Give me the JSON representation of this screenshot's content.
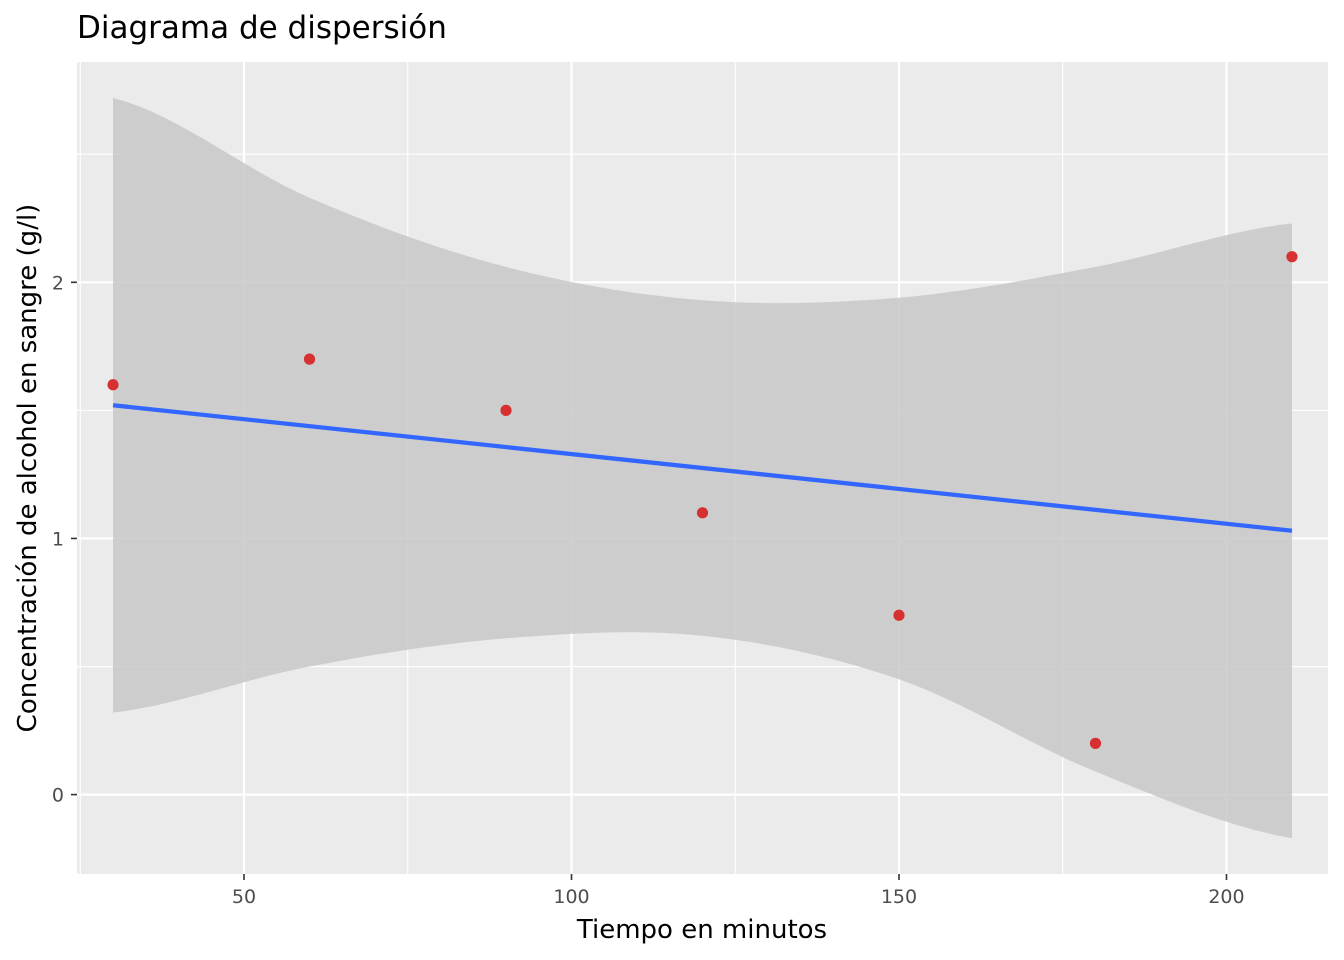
{
  "chart_data": {
    "type": "scatter",
    "title": "Diagrama de dispersión",
    "xlabel": "Tiempo en minutos",
    "ylabel": "Concentración de alcohol en sangre (g/l)",
    "xlim": [
      24.5,
      215.5
    ],
    "ylim": [
      -0.31,
      2.86
    ],
    "x_ticks": [
      50,
      100,
      150,
      200
    ],
    "x_tick_labels": [
      "50",
      "100",
      "150",
      "200"
    ],
    "y_ticks": [
      0,
      1,
      2
    ],
    "y_tick_labels": [
      "0",
      "1",
      "2"
    ],
    "grid": true,
    "legend": "none",
    "colors": {
      "panel": "#ebebeb",
      "grid": "#ffffff",
      "points": "#d62728",
      "fit_line": "#3366ff",
      "confidence_band": "#c8c8c8"
    },
    "points": [
      {
        "x": 30,
        "y": 1.6
      },
      {
        "x": 60,
        "y": 1.7
      },
      {
        "x": 90,
        "y": 1.5
      },
      {
        "x": 120,
        "y": 1.1
      },
      {
        "x": 150,
        "y": 0.7
      },
      {
        "x": 180,
        "y": 0.2
      },
      {
        "x": 210,
        "y": 2.1
      }
    ],
    "fit_line": {
      "x": [
        30,
        210
      ],
      "y": [
        1.52,
        1.03
      ]
    },
    "confidence_band": {
      "x": [
        30,
        60,
        90,
        120,
        150,
        180,
        210
      ],
      "upper": [
        2.72,
        2.33,
        2.06,
        1.93,
        1.94,
        2.06,
        2.23
      ],
      "lower": [
        0.32,
        0.5,
        0.61,
        0.62,
        0.45,
        0.09,
        -0.17
      ]
    }
  }
}
